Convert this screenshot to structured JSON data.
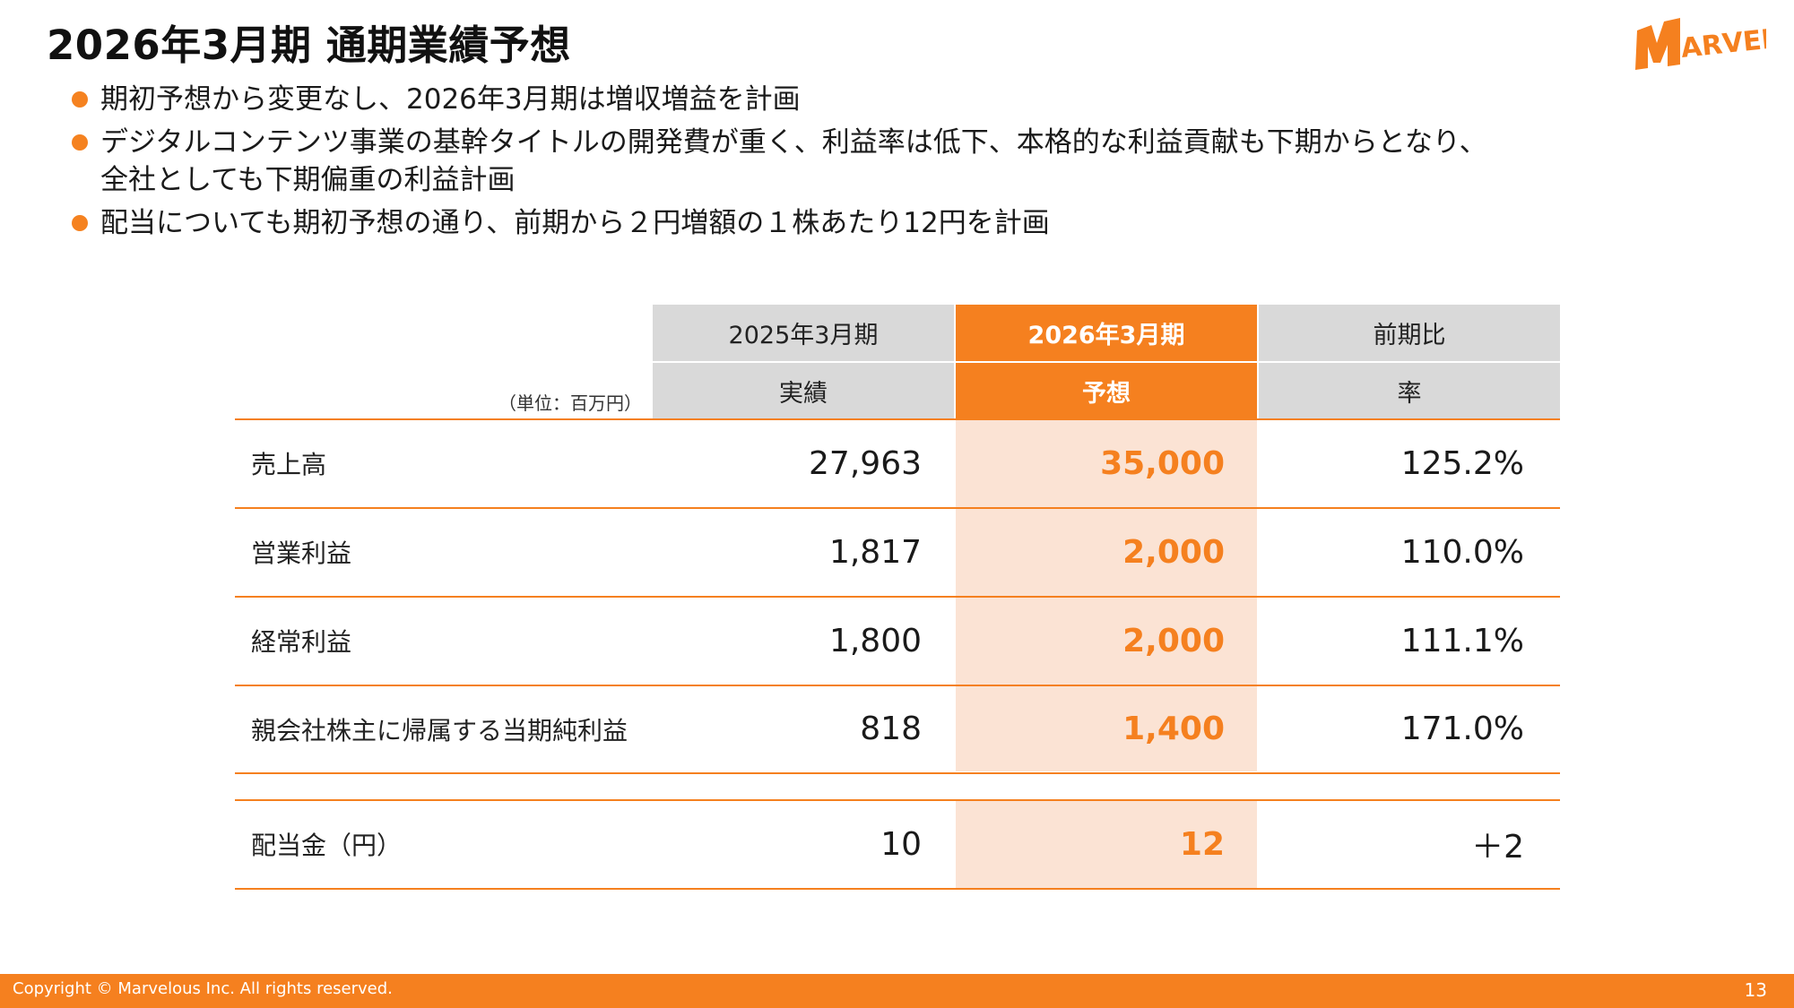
{
  "page": {
    "title": "2026年3月期 通期業績予想",
    "logo_text": "MARVELOUS!",
    "page_number": "13",
    "copyright": "Copyright © Marvelous Inc. All rights reserved."
  },
  "bullets": [
    {
      "lines": [
        "期初予想から変更なし、2026年3月期は増収増益を計画"
      ]
    },
    {
      "lines": [
        "デジタルコンテンツ事業の基幹タイトルの開発費が重く、利益率は低下、本格的な利益貢献も下期からとなり、",
        "全社としても下期偏重の利益計画"
      ]
    },
    {
      "lines": [
        "配当についても期初予想の通り、前期から２円増額の１株あたり12円を計画"
      ]
    }
  ],
  "table": {
    "unit_label": "（単位：百万円）",
    "headers": {
      "col1_top": "2025年3月期",
      "col1_bottom": "実績",
      "col2_top": "2026年3月期",
      "col2_bottom": "予想",
      "col3_top": "前期比",
      "col3_bottom": "率"
    },
    "rows": [
      {
        "label": "売上高",
        "actual": "27,963",
        "forecast": "35,000",
        "ratio": "125.2%"
      },
      {
        "label": "営業利益",
        "actual": "1,817",
        "forecast": "2,000",
        "ratio": "110.0%"
      },
      {
        "label": "経常利益",
        "actual": "1,800",
        "forecast": "2,000",
        "ratio": "111.1%"
      },
      {
        "label": "親会社株主に帰属する当期純利益",
        "actual": "818",
        "forecast": "1,400",
        "ratio": "171.0%"
      }
    ],
    "dividend": {
      "label": "配当金（円）",
      "actual": "10",
      "forecast": "12",
      "ratio": "＋2"
    }
  },
  "colors": {
    "accent": "#f5801f",
    "highlight": "#fbe3d4",
    "header_gray": "#d9d9d9"
  }
}
